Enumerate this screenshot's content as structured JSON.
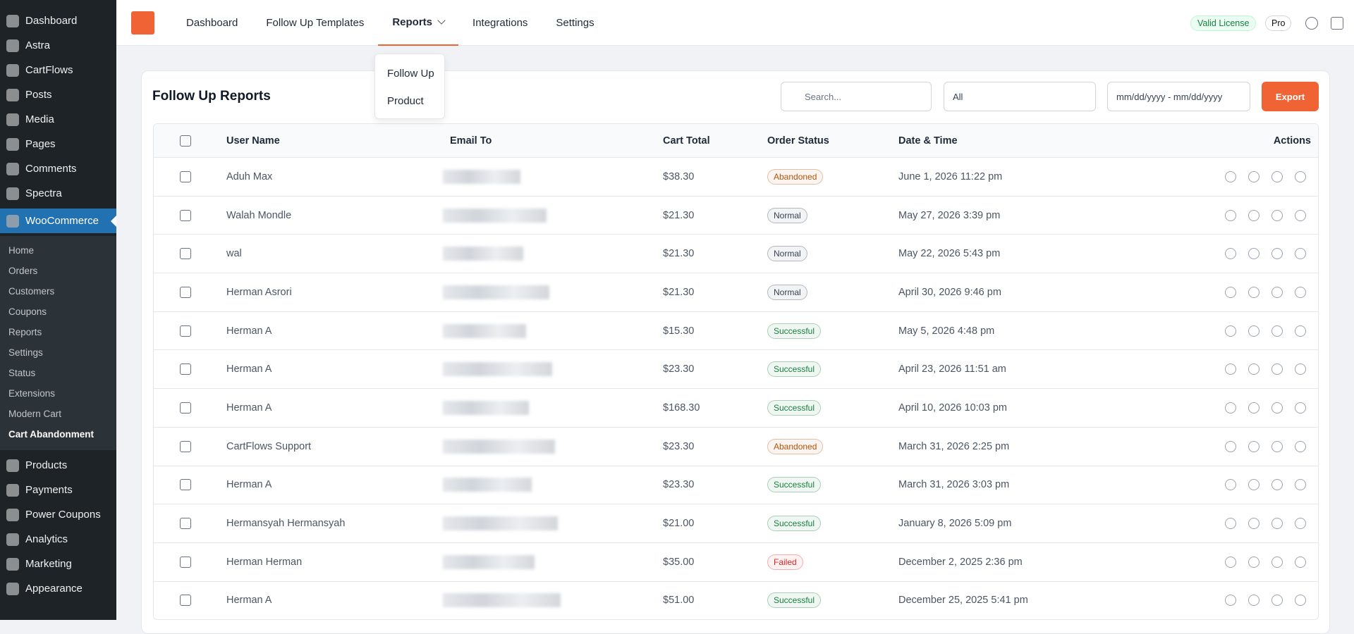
{
  "sidebar": {
    "menu_before": [
      "Dashboard",
      "Astra",
      "CartFlows",
      "Posts",
      "Media",
      "Pages",
      "Comments",
      "Spectra"
    ],
    "active_menu": "WooCommerce",
    "submenu": [
      "Home",
      "Orders",
      "Customers",
      "Coupons",
      "Reports",
      "Settings",
      "Status",
      "Extensions",
      "Modern Cart",
      "Cart Abandonment"
    ],
    "menu_after": [
      "Products",
      "Payments",
      "Power Coupons",
      "Analytics",
      "Marketing",
      "Appearance"
    ]
  },
  "nav": {
    "tabs": [
      "Dashboard",
      "Follow Up Templates",
      "Reports",
      "Integrations",
      "Settings"
    ],
    "dropdown": [
      "Follow Up",
      "Product"
    ],
    "license": "Valid License",
    "plan": "Pro"
  },
  "toolbar": {
    "title": "Follow Up Reports",
    "search_placeholder": "Search...",
    "filter": "All",
    "date_placeholder": "mm/dd/yyyy - mm/dd/yyyy",
    "export": "Export"
  },
  "table": {
    "columns": [
      "User Name",
      "Email To",
      "Cart Total",
      "Order Status",
      "Date & Time",
      "Actions"
    ],
    "rows": [
      {
        "user": "Aduh Max",
        "total": "$38.30",
        "status": "Abandoned",
        "status_color": "#b45309",
        "date": "June 1, 2026 11:22 pm"
      },
      {
        "user": "Walah Mondle",
        "total": "$21.30",
        "status": "Normal",
        "status_color": "#374151",
        "date": "May 27, 2026 3:39 pm"
      },
      {
        "user": "wal",
        "total": "$21.30",
        "status": "Normal",
        "status_color": "#374151",
        "date": "May 22, 2026 5:43 pm"
      },
      {
        "user": "Herman Asrori",
        "total": "$21.30",
        "status": "Normal",
        "status_color": "#374151",
        "date": "April 30, 2026 9:46 pm"
      },
      {
        "user": "Herman A",
        "total": "$15.30",
        "status": "Successful",
        "status_color": "#15803d",
        "date": "May 5, 2026 4:48 pm"
      },
      {
        "user": "Herman A",
        "total": "$23.30",
        "status": "Successful",
        "status_color": "#15803d",
        "date": "April 23, 2026 11:51 am"
      },
      {
        "user": "Herman A",
        "total": "$168.30",
        "status": "Successful",
        "status_color": "#15803d",
        "date": "April 10, 2026 10:03 pm"
      },
      {
        "user": "CartFlows Support",
        "total": "$23.30",
        "status": "Abandoned",
        "status_color": "#b45309",
        "date": "March 31, 2026 2:25 pm"
      },
      {
        "user": "Herman A",
        "total": "$23.30",
        "status": "Successful",
        "status_color": "#15803d",
        "date": "March 31, 2026 3:03 pm"
      },
      {
        "user": "Hermansyah Hermansyah",
        "total": "$21.00",
        "status": "Successful",
        "status_color": "#15803d",
        "date": "January 8, 2026 5:09 pm"
      },
      {
        "user": "Herman Herman",
        "total": "$35.00",
        "status": "Failed",
        "status_color": "#dc2626",
        "date": "December 2, 2025 2:36 pm"
      },
      {
        "user": "Herman A",
        "total": "$51.00",
        "status": "Successful",
        "status_color": "#15803d",
        "date": "December 25, 2025 5:41 pm"
      }
    ]
  }
}
